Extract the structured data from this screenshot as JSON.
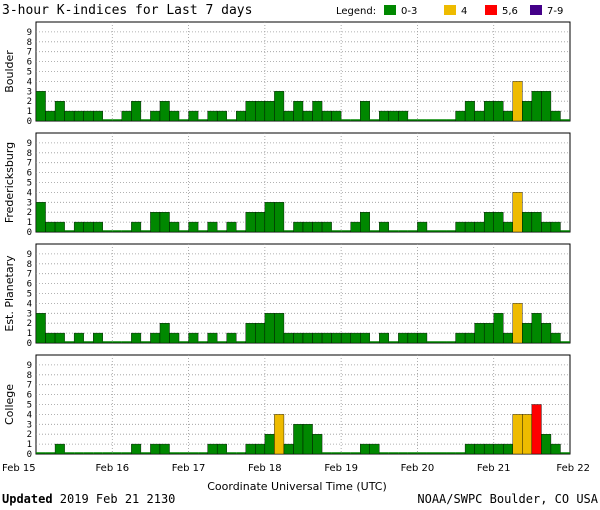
{
  "chart_data": {
    "type": "bar",
    "title": "3-hour K-indices for Last 7 days",
    "legend": {
      "label": "Legend:",
      "items": [
        {
          "label": "0-3",
          "color": "#008800"
        },
        {
          "label": "4",
          "color": "#eebb00"
        },
        {
          "label": "5,6",
          "color": "#ff0000"
        },
        {
          "label": "7-9",
          "color": "#440088"
        }
      ]
    },
    "xlabel": "Coordinate Universal Time (UTC)",
    "x_tick_labels": [
      "Feb 15",
      "Feb 16",
      "Feb 17",
      "Feb 18",
      "Feb 19",
      "Feb 20",
      "Feb 21",
      "Feb 22"
    ],
    "y_ticks": [
      "0",
      "1",
      "2",
      "3",
      "4",
      "5",
      "6",
      "7",
      "8",
      "9"
    ],
    "ylim": [
      0,
      9
    ],
    "panels": [
      {
        "name": "Boulder",
        "values": [
          3,
          1,
          2,
          1,
          1,
          1,
          1,
          0,
          0,
          1,
          2,
          0,
          1,
          2,
          1,
          0,
          1,
          0,
          1,
          1,
          0,
          1,
          2,
          2,
          2,
          3,
          1,
          2,
          1,
          2,
          1,
          1,
          0,
          0,
          2,
          0,
          1,
          1,
          1,
          0,
          0,
          0,
          0,
          0,
          1,
          2,
          1,
          2,
          2,
          1,
          4,
          2,
          3,
          3,
          1,
          0
        ]
      },
      {
        "name": "Fredericksburg",
        "values": [
          3,
          1,
          1,
          0,
          1,
          1,
          1,
          0,
          0,
          0,
          1,
          0,
          2,
          2,
          1,
          0,
          1,
          0,
          1,
          0,
          1,
          0,
          2,
          2,
          3,
          3,
          0,
          1,
          1,
          1,
          1,
          0,
          0,
          1,
          2,
          0,
          1,
          0,
          0,
          0,
          1,
          0,
          0,
          0,
          1,
          1,
          1,
          2,
          2,
          1,
          4,
          2,
          2,
          1,
          1,
          0
        ]
      },
      {
        "name": "Est. Planetary",
        "values": [
          3,
          1,
          1,
          0,
          1,
          0,
          1,
          0,
          0,
          0,
          1,
          0,
          1,
          2,
          1,
          0,
          1,
          0,
          1,
          0,
          1,
          0,
          2,
          2,
          3,
          3,
          1,
          1,
          1,
          1,
          1,
          1,
          1,
          1,
          1,
          0,
          1,
          0,
          1,
          1,
          1,
          0,
          0,
          0,
          1,
          1,
          2,
          2,
          3,
          1,
          4,
          2,
          3,
          2,
          1,
          0
        ]
      },
      {
        "name": "College",
        "values": [
          0,
          0,
          1,
          0,
          0,
          0,
          0,
          0,
          0,
          0,
          1,
          0,
          1,
          1,
          0,
          0,
          0,
          0,
          1,
          1,
          0,
          0,
          1,
          1,
          2,
          4,
          1,
          3,
          3,
          2,
          0,
          0,
          0,
          0,
          1,
          1,
          0,
          0,
          0,
          0,
          0,
          0,
          0,
          0,
          0,
          1,
          1,
          1,
          1,
          1,
          4,
          4,
          5,
          2,
          1,
          0
        ]
      }
    ]
  },
  "footer": {
    "updated_label": "Updated",
    "updated_value": " 2019 Feb 21 2130",
    "credit": "NOAA/SWPC Boulder, CO USA"
  }
}
